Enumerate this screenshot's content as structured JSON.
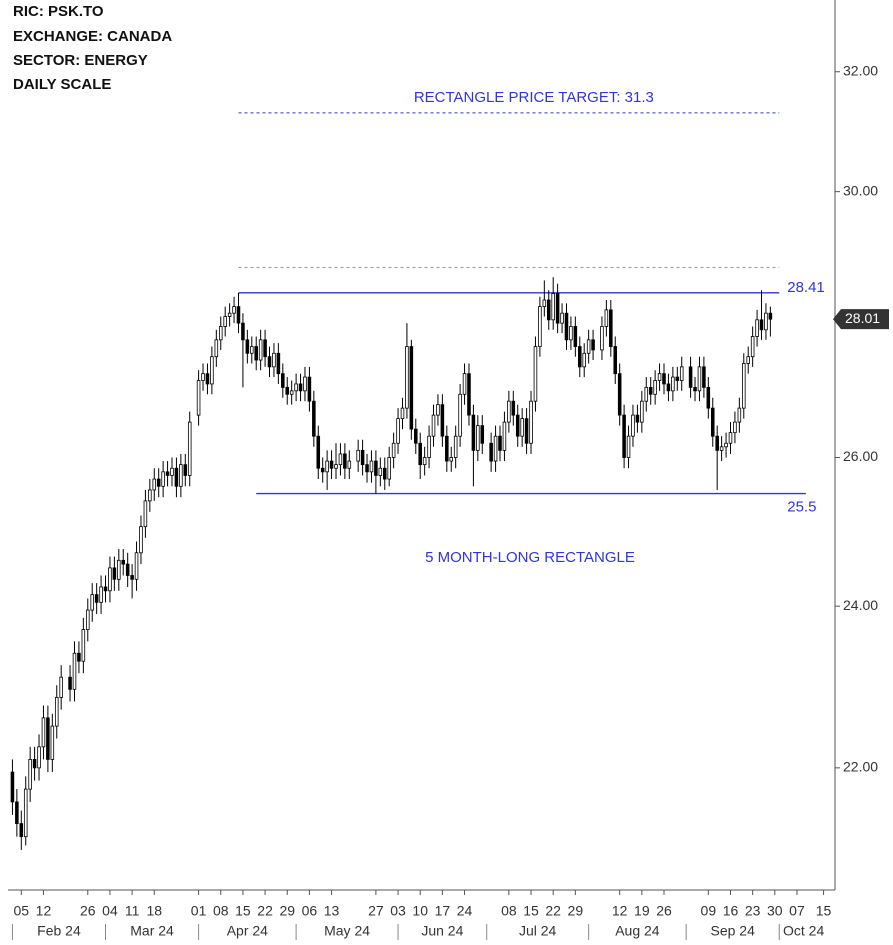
{
  "chart_data": {
    "type": "candlestick",
    "info": [
      "RIC: PSK.TO",
      "EXCHANGE: CANADA",
      "SECTOR: ENERGY",
      "DAILY SCALE"
    ],
    "annotation": "5 MONTH-LONG RECTANGLE",
    "x": [
      "2024-02-01",
      "2024-02-02",
      "2024-02-05",
      "2024-02-06",
      "2024-02-07",
      "2024-02-08",
      "2024-02-09",
      "2024-02-12",
      "2024-02-13",
      "2024-02-14",
      "2024-02-15",
      "2024-02-16",
      "2024-02-20",
      "2024-02-21",
      "2024-02-22",
      "2024-02-23",
      "2024-02-26",
      "2024-02-27",
      "2024-02-28",
      "2024-02-29",
      "2024-03-01",
      "2024-03-04",
      "2024-03-05",
      "2024-03-06",
      "2024-03-07",
      "2024-03-08",
      "2024-03-11",
      "2024-03-12",
      "2024-03-13",
      "2024-03-14",
      "2024-03-15",
      "2024-03-18",
      "2024-03-19",
      "2024-03-20",
      "2024-03-21",
      "2024-03-22",
      "2024-03-25",
      "2024-03-26",
      "2024-03-27",
      "2024-03-28",
      "2024-04-01",
      "2024-04-02",
      "2024-04-03",
      "2024-04-04",
      "2024-04-05",
      "2024-04-08",
      "2024-04-09",
      "2024-04-10",
      "2024-04-11",
      "2024-04-12",
      "2024-04-15",
      "2024-04-16",
      "2024-04-17",
      "2024-04-18",
      "2024-04-19",
      "2024-04-22",
      "2024-04-23",
      "2024-04-24",
      "2024-04-25",
      "2024-04-26",
      "2024-04-29",
      "2024-04-30",
      "2024-05-01",
      "2024-05-02",
      "2024-05-03",
      "2024-05-06",
      "2024-05-07",
      "2024-05-08",
      "2024-05-09",
      "2024-05-10",
      "2024-05-13",
      "2024-05-14",
      "2024-05-15",
      "2024-05-16",
      "2024-05-17",
      "2024-05-21",
      "2024-05-22",
      "2024-05-23",
      "2024-05-24",
      "2024-05-27",
      "2024-05-28",
      "2024-05-29",
      "2024-05-30",
      "2024-05-31",
      "2024-06-03",
      "2024-06-04",
      "2024-06-05",
      "2024-06-06",
      "2024-06-07",
      "2024-06-10",
      "2024-06-11",
      "2024-06-12",
      "2024-06-13",
      "2024-06-14",
      "2024-06-17",
      "2024-06-18",
      "2024-06-19",
      "2024-06-20",
      "2024-06-21",
      "2024-06-24",
      "2024-06-25",
      "2024-06-26",
      "2024-06-27",
      "2024-06-28",
      "2024-07-02",
      "2024-07-03",
      "2024-07-04",
      "2024-07-05",
      "2024-07-08",
      "2024-07-09",
      "2024-07-10",
      "2024-07-11",
      "2024-07-12",
      "2024-07-15",
      "2024-07-16",
      "2024-07-17",
      "2024-07-18",
      "2024-07-19",
      "2024-07-22",
      "2024-07-23",
      "2024-07-24",
      "2024-07-25",
      "2024-07-26",
      "2024-07-29",
      "2024-07-30",
      "2024-07-31",
      "2024-08-01",
      "2024-08-02",
      "2024-08-06",
      "2024-08-07",
      "2024-08-08",
      "2024-08-09",
      "2024-08-12",
      "2024-08-13",
      "2024-08-14",
      "2024-08-15",
      "2024-08-16",
      "2024-08-19",
      "2024-08-20",
      "2024-08-21",
      "2024-08-22",
      "2024-08-23",
      "2024-08-26",
      "2024-08-27",
      "2024-08-28",
      "2024-08-29",
      "2024-08-30",
      "2024-09-03",
      "2024-09-04",
      "2024-09-05",
      "2024-09-06",
      "2024-09-09",
      "2024-09-10",
      "2024-09-11",
      "2024-09-12",
      "2024-09-13",
      "2024-09-16",
      "2024-09-17",
      "2024-09-18",
      "2024-09-19",
      "2024-09-20",
      "2024-09-23",
      "2024-09-24",
      "2024-09-25",
      "2024-09-26",
      "2024-09-27"
    ],
    "open": [
      21.95,
      21.6,
      21.35,
      21.2,
      21.75,
      22.1,
      22.0,
      22.25,
      22.6,
      22.1,
      22.5,
      22.85,
      23.1,
      22.95,
      23.4,
      23.3,
      23.7,
      23.95,
      24.15,
      24.05,
      24.25,
      24.2,
      24.5,
      24.35,
      24.6,
      24.55,
      24.4,
      24.35,
      24.7,
      25.05,
      25.4,
      25.55,
      25.7,
      25.6,
      25.8,
      25.75,
      25.85,
      25.6,
      25.9,
      25.75,
      26.6,
      27.1,
      27.2,
      27.05,
      27.45,
      27.7,
      27.9,
      28.05,
      28.1,
      28.2,
      27.95,
      27.7,
      27.5,
      27.6,
      27.4,
      27.7,
      27.45,
      27.3,
      27.5,
      27.2,
      27.0,
      26.9,
      26.95,
      27.05,
      26.95,
      27.15,
      26.8,
      26.3,
      25.85,
      25.8,
      25.95,
      25.85,
      25.9,
      26.05,
      25.85,
      25.95,
      26.1,
      25.9,
      25.8,
      25.95,
      25.75,
      25.85,
      25.7,
      26.0,
      26.2,
      26.55,
      26.7,
      27.6,
      26.4,
      26.2,
      25.9,
      26.0,
      26.3,
      26.6,
      26.75,
      26.3,
      25.95,
      26.0,
      26.3,
      26.9,
      27.2,
      26.6,
      26.1,
      26.45,
      26.2,
      25.95,
      26.3,
      26.1,
      26.5,
      26.8,
      26.6,
      26.3,
      26.55,
      26.2,
      26.8,
      27.6,
      28.2,
      28.3,
      28.0,
      28.4,
      27.95,
      28.1,
      27.7,
      27.9,
      27.6,
      27.3,
      27.5,
      27.7,
      27.55,
      27.9,
      28.15,
      27.6,
      27.2,
      26.6,
      26.0,
      26.3,
      26.6,
      26.5,
      26.8,
      27.0,
      26.9,
      27.1,
      27.2,
      27.05,
      26.95,
      27.15,
      27.1,
      27.3,
      27.0,
      26.95,
      27.3,
      27.0,
      26.7,
      26.3,
      26.1,
      26.15,
      26.2,
      26.35,
      26.5,
      26.7,
      27.35,
      27.45,
      27.75,
      28.0,
      27.85,
      28.1
    ],
    "high": [
      22.1,
      21.75,
      21.5,
      21.9,
      22.25,
      22.25,
      22.4,
      22.75,
      22.75,
      22.65,
      23.0,
      23.25,
      23.25,
      23.55,
      23.55,
      23.85,
      24.1,
      24.3,
      24.3,
      24.4,
      24.4,
      24.65,
      24.65,
      24.75,
      24.75,
      24.7,
      24.55,
      24.85,
      25.2,
      25.55,
      25.7,
      25.85,
      25.85,
      25.95,
      25.95,
      26.0,
      26.0,
      26.05,
      26.05,
      26.65,
      27.25,
      27.35,
      27.35,
      27.6,
      27.85,
      28.05,
      28.2,
      28.25,
      28.35,
      28.41,
      28.1,
      27.85,
      27.75,
      27.75,
      27.85,
      27.85,
      27.6,
      27.65,
      27.65,
      27.35,
      27.15,
      27.1,
      27.2,
      27.2,
      27.3,
      27.3,
      26.95,
      26.45,
      26.0,
      26.1,
      26.1,
      26.2,
      26.2,
      26.2,
      26.1,
      26.25,
      26.25,
      26.05,
      26.1,
      26.1,
      26.0,
      26.0,
      26.15,
      26.35,
      26.7,
      26.85,
      27.95,
      27.7,
      26.55,
      26.35,
      26.15,
      26.45,
      26.75,
      26.9,
      26.9,
      26.45,
      26.15,
      26.45,
      27.05,
      27.35,
      27.35,
      26.75,
      26.6,
      26.6,
      26.35,
      26.45,
      26.45,
      26.65,
      26.95,
      26.95,
      26.75,
      26.7,
      26.7,
      26.95,
      27.75,
      28.35,
      28.6,
      28.45,
      28.65,
      28.55,
      28.25,
      28.25,
      28.05,
      28.05,
      27.75,
      27.65,
      27.85,
      27.85,
      28.05,
      28.3,
      28.3,
      27.75,
      27.35,
      26.75,
      26.45,
      26.75,
      26.75,
      26.95,
      27.15,
      27.15,
      27.25,
      27.35,
      27.35,
      27.2,
      27.3,
      27.3,
      27.45,
      27.45,
      27.15,
      27.45,
      27.45,
      27.15,
      26.85,
      26.45,
      26.3,
      26.35,
      26.5,
      26.65,
      26.85,
      27.5,
      27.6,
      27.9,
      28.15,
      28.45,
      28.25,
      28.2
    ],
    "low": [
      21.45,
      21.2,
      21.05,
      21.1,
      21.6,
      21.85,
      21.85,
      22.1,
      21.95,
      21.95,
      22.35,
      22.7,
      22.8,
      22.8,
      23.15,
      23.15,
      23.55,
      23.8,
      23.9,
      23.9,
      24.05,
      24.05,
      24.2,
      24.2,
      24.4,
      24.25,
      24.1,
      24.2,
      24.55,
      24.9,
      25.25,
      25.4,
      25.45,
      25.45,
      25.6,
      25.6,
      25.45,
      25.45,
      25.6,
      25.6,
      26.45,
      26.95,
      26.9,
      26.9,
      27.3,
      27.55,
      27.75,
      27.9,
      27.95,
      27.8,
      27.0,
      27.35,
      27.35,
      27.25,
      27.25,
      27.3,
      27.15,
      27.15,
      27.05,
      26.85,
      26.75,
      26.75,
      26.8,
      26.8,
      26.8,
      26.65,
      26.15,
      25.7,
      25.65,
      25.55,
      25.7,
      25.7,
      25.75,
      25.7,
      25.7,
      25.8,
      25.75,
      25.65,
      25.65,
      25.5,
      25.6,
      25.55,
      25.6,
      25.85,
      26.05,
      26.4,
      26.55,
      26.25,
      26.05,
      25.7,
      25.75,
      25.85,
      26.15,
      26.45,
      26.15,
      25.8,
      25.8,
      25.85,
      26.15,
      26.75,
      26.45,
      25.6,
      25.95,
      26.05,
      25.8,
      25.8,
      25.95,
      25.95,
      26.35,
      26.45,
      26.15,
      26.15,
      26.05,
      26.05,
      26.65,
      27.45,
      28.05,
      27.85,
      27.85,
      27.8,
      27.8,
      27.55,
      27.55,
      27.45,
      27.15,
      27.15,
      27.35,
      27.4,
      27.4,
      27.75,
      27.45,
      27.05,
      26.45,
      25.85,
      25.85,
      26.15,
      26.35,
      26.35,
      26.65,
      26.75,
      26.75,
      26.95,
      26.9,
      26.8,
      26.8,
      26.95,
      26.95,
      26.85,
      26.8,
      26.8,
      26.85,
      26.55,
      26.15,
      25.55,
      25.95,
      26.0,
      26.05,
      26.2,
      26.35,
      26.55,
      27.2,
      27.3,
      27.6,
      27.7,
      27.7,
      27.75
    ],
    "close": [
      21.6,
      21.35,
      21.2,
      21.75,
      22.1,
      22.0,
      22.25,
      22.6,
      22.1,
      22.5,
      22.85,
      23.1,
      22.95,
      23.4,
      23.3,
      23.7,
      23.95,
      24.15,
      24.05,
      24.25,
      24.2,
      24.5,
      24.35,
      24.6,
      24.55,
      24.4,
      24.35,
      24.7,
      25.05,
      25.4,
      25.55,
      25.7,
      25.6,
      25.8,
      25.75,
      25.85,
      25.6,
      25.9,
      25.75,
      26.5,
      27.1,
      27.2,
      27.05,
      27.45,
      27.7,
      27.9,
      28.05,
      28.1,
      28.2,
      27.95,
      27.7,
      27.5,
      27.6,
      27.4,
      27.7,
      27.45,
      27.3,
      27.5,
      27.2,
      27.0,
      26.9,
      26.95,
      27.05,
      26.95,
      27.15,
      26.8,
      26.3,
      25.85,
      25.8,
      25.95,
      25.85,
      25.9,
      26.05,
      25.85,
      25.95,
      26.1,
      25.9,
      25.8,
      25.95,
      25.75,
      25.85,
      25.7,
      26.0,
      26.2,
      26.55,
      26.7,
      27.6,
      26.4,
      26.2,
      25.9,
      26.0,
      26.3,
      26.6,
      26.75,
      26.3,
      25.95,
      26.0,
      26.3,
      26.9,
      27.2,
      26.6,
      26.1,
      26.45,
      26.2,
      25.95,
      26.3,
      26.1,
      26.5,
      26.8,
      26.6,
      26.3,
      26.55,
      26.2,
      26.8,
      27.6,
      28.2,
      28.3,
      28.0,
      28.4,
      27.95,
      28.1,
      27.7,
      27.9,
      27.6,
      27.3,
      27.5,
      27.7,
      27.55,
      27.9,
      28.15,
      27.6,
      27.2,
      26.6,
      26.0,
      26.3,
      26.6,
      26.5,
      26.8,
      27.0,
      26.9,
      27.1,
      27.2,
      27.05,
      26.95,
      27.15,
      27.1,
      27.3,
      27.0,
      26.95,
      27.3,
      27.0,
      26.7,
      26.3,
      26.1,
      26.15,
      26.2,
      26.35,
      26.5,
      26.7,
      27.35,
      27.45,
      27.75,
      28.0,
      27.85,
      28.1,
      28.01
    ],
    "up_color": "#ffffff",
    "down_color": "#000000",
    "wick_color": "#000000",
    "last_price_color": "#333333",
    "xlim": [
      "2024-01-31",
      "2024-10-16"
    ],
    "xticks": [
      {
        "value": "2024-02-05",
        "label": "05"
      },
      {
        "value": "2024-02-12",
        "label": "12"
      },
      {
        "value": "2024-02-26",
        "label": "26"
      },
      {
        "value": "2024-03-04",
        "label": "04"
      },
      {
        "value": "2024-03-11",
        "label": "11"
      },
      {
        "value": "2024-03-18",
        "label": "18"
      },
      {
        "value": "2024-04-01",
        "label": "01"
      },
      {
        "value": "2024-04-08",
        "label": "08"
      },
      {
        "value": "2024-04-15",
        "label": "15"
      },
      {
        "value": "2024-04-22",
        "label": "22"
      },
      {
        "value": "2024-04-29",
        "label": "29"
      },
      {
        "value": "2024-05-06",
        "label": "06"
      },
      {
        "value": "2024-05-13",
        "label": "13"
      },
      {
        "value": "2024-05-27",
        "label": "27"
      },
      {
        "value": "2024-06-03",
        "label": "03"
      },
      {
        "value": "2024-06-10",
        "label": "10"
      },
      {
        "value": "2024-06-17",
        "label": "17"
      },
      {
        "value": "2024-06-24",
        "label": "24"
      },
      {
        "value": "2024-07-08",
        "label": "08"
      },
      {
        "value": "2024-07-15",
        "label": "15"
      },
      {
        "value": "2024-07-22",
        "label": "22"
      },
      {
        "value": "2024-07-29",
        "label": "29"
      },
      {
        "value": "2024-08-12",
        "label": "12"
      },
      {
        "value": "2024-08-19",
        "label": "19"
      },
      {
        "value": "2024-08-26",
        "label": "26"
      },
      {
        "value": "2024-09-09",
        "label": "09"
      },
      {
        "value": "2024-09-16",
        "label": "16"
      },
      {
        "value": "2024-09-23",
        "label": "23"
      },
      {
        "value": "2024-09-30",
        "label": "30"
      },
      {
        "value": "2024-10-07",
        "label": "07"
      },
      {
        "value": "2024-10-15",
        "label": "15"
      }
    ],
    "month_labels": [
      {
        "value": "2024-02-01",
        "label": "Feb 24"
      },
      {
        "value": "2024-03-01",
        "label": "Mar 24"
      },
      {
        "value": "2024-04-01",
        "label": "Apr 24"
      },
      {
        "value": "2024-05-01",
        "label": "May 24"
      },
      {
        "value": "2024-06-01",
        "label": "Jun 24"
      },
      {
        "value": "2024-07-01",
        "label": "Jul 24"
      },
      {
        "value": "2024-08-01",
        "label": "Aug 24"
      },
      {
        "value": "2024-09-01",
        "label": "Sep 24"
      },
      {
        "value": "2024-10-01",
        "label": "Oct 24"
      }
    ],
    "ylim": [
      20.6,
      33.26
    ],
    "yticks": [
      {
        "value": 22,
        "label": "22.00"
      },
      {
        "value": 24,
        "label": "24.00"
      },
      {
        "value": 26,
        "label": "26.00"
      },
      {
        "value": 30,
        "label": "30.00"
      },
      {
        "value": 32,
        "label": "32.00"
      }
    ],
    "log_scale": true,
    "levels": [
      {
        "value": 31.3,
        "start": "2024-04-12",
        "end": "2024-10-01",
        "style": "dashed",
        "color": "#3333dd",
        "text": "RECTANGLE PRICE TARGET: 31.3"
      },
      {
        "value": 28.8,
        "start": "2024-04-12",
        "end": "2024-10-01",
        "style": "dashed",
        "color": "#999999"
      },
      {
        "value": 28.41,
        "start": "2024-04-12",
        "end": "2024-10-01",
        "style": "solid",
        "color": "#3333dd",
        "value_label": "right"
      },
      {
        "value": 25.5,
        "start": "2024-04-18",
        "end": "2024-10-09",
        "style": "solid",
        "color": "#3333dd",
        "value_label": "below"
      }
    ],
    "annotation_color": "#3333dd"
  }
}
